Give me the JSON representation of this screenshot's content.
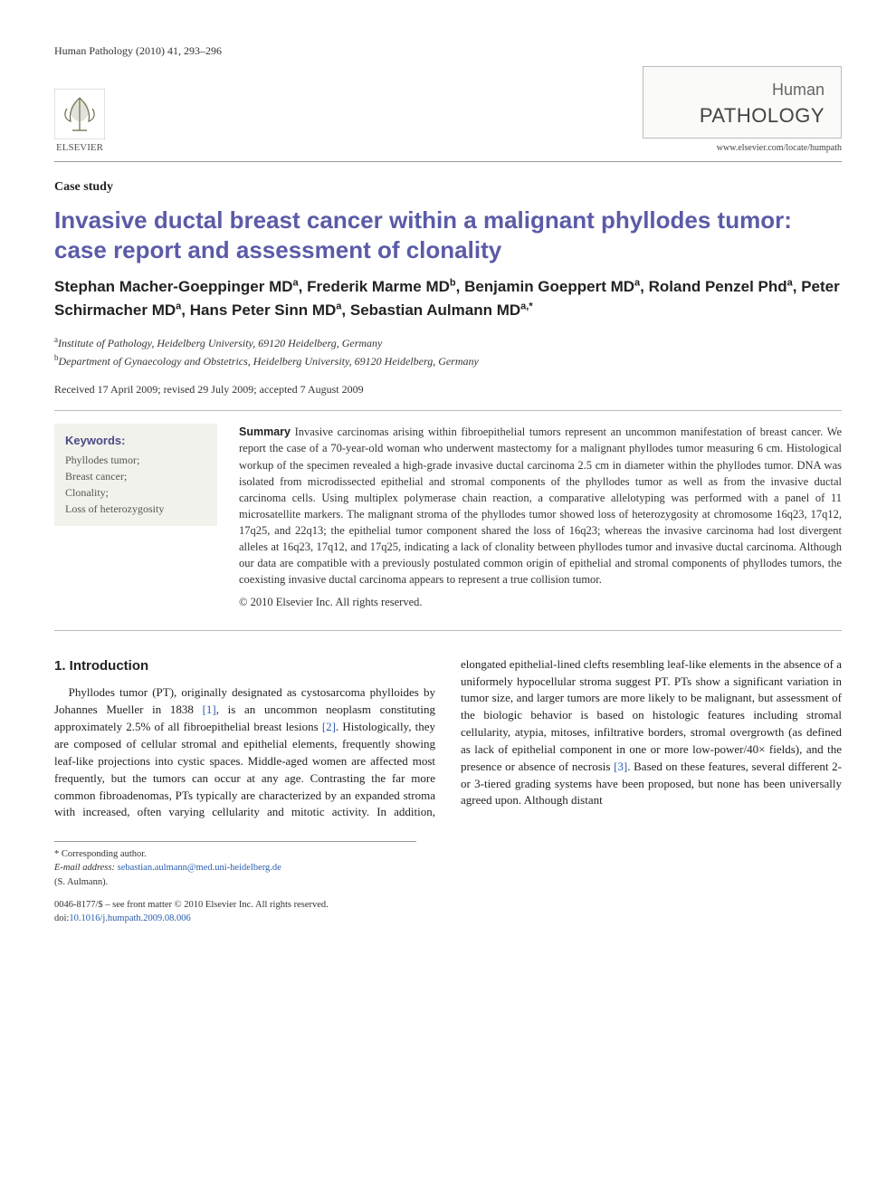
{
  "header": {
    "citation": "Human Pathology (2010) 41, 293–296",
    "publisher_name": "ELSEVIER",
    "journal_name_1": "Human",
    "journal_name_2": "PATHOLOGY",
    "journal_url": "www.elsevier.com/locate/humpath"
  },
  "article_type": "Case study",
  "title": "Invasive ductal breast cancer within a malignant phyllodes tumor: case report and assessment of clonality",
  "authors_html": "Stephan Macher-Goeppinger MD<sup>a</sup>, Frederik Marme MD<sup>b</sup>, Benjamin Goeppert MD<sup>a</sup>, Roland Penzel Phd<sup>a</sup>, Peter Schirmacher MD<sup>a</sup>, Hans Peter Sinn MD<sup>a</sup>, Sebastian Aulmann MD<sup>a,*</sup>",
  "affiliations": [
    {
      "sup": "a",
      "text": "Institute of Pathology, Heidelberg University, 69120 Heidelberg, Germany"
    },
    {
      "sup": "b",
      "text": "Department of Gynaecology and Obstetrics, Heidelberg University, 69120 Heidelberg, Germany"
    }
  ],
  "dates": "Received 17 April 2009; revised 29 July 2009; accepted 7 August 2009",
  "keywords": {
    "heading": "Keywords:",
    "items": [
      "Phyllodes tumor;",
      "Breast cancer;",
      "Clonality;",
      "Loss of heterozygosity"
    ]
  },
  "summary": {
    "heading": "Summary",
    "text": "Invasive carcinomas arising within fibroepithelial tumors represent an uncommon manifestation of breast cancer. We report the case of a 70-year-old woman who underwent mastectomy for a malignant phyllodes tumor measuring 6 cm. Histological workup of the specimen revealed a high-grade invasive ductal carcinoma 2.5 cm in diameter within the phyllodes tumor. DNA was isolated from microdissected epithelial and stromal components of the phyllodes tumor as well as from the invasive ductal carcinoma cells. Using multiplex polymerase chain reaction, a comparative allelotyping was performed with a panel of 11 microsatellite markers. The malignant stroma of the phyllodes tumor showed loss of heterozygosity at chromosome 16q23, 17q12, 17q25, and 22q13; the epithelial tumor component shared the loss of 16q23; whereas the invasive carcinoma had lost divergent alleles at 16q23, 17q12, and 17q25, indicating a lack of clonality between phyllodes tumor and invasive ductal carcinoma. Although our data are compatible with a previously postulated common origin of epithelial and stromal components of phyllodes tumors, the coexisting invasive ductal carcinoma appears to represent a true collision tumor.",
    "copyright": "© 2010 Elsevier Inc. All rights reserved."
  },
  "section1": {
    "heading": "1. Introduction",
    "para1_pre": "Phyllodes tumor (PT), originally designated as cystosarcoma phylloides by Johannes Mueller in 1838 ",
    "ref1": "[1]",
    "para1_mid": ", is an uncommon neoplasm constituting approximately 2.5% of all fibroepithelial breast lesions ",
    "ref2": "[2]",
    "para1_post": ". Histologically, they are composed of cellular stromal and epithelial elements, frequently showing leaf-like projections into cystic spaces. Middle-aged women are affected most frequently, but the tumors can occur at any age. Contrasting the far more",
    "para2_pre": "common fibroadenomas, PTs typically are characterized by an expanded stroma with increased, often varying cellularity and mitotic activity. In addition, elongated epithelial-lined clefts resembling leaf-like elements in the absence of a uniformely hypocellular stroma suggest PT. PTs show a significant variation in tumor size, and larger tumors are more likely to be malignant, but assessment of the biologic behavior is based on histologic features including stromal cellularity, atypia, mitoses, infiltrative borders, stromal overgrowth (as defined as lack of epithelial component in one or more low-power/40× fields), and the presence or absence of necrosis ",
    "ref3": "[3]",
    "para2_post": ". Based on these features, several different 2- or 3-tiered grading systems have been proposed, but none has been universally agreed upon. Although distant"
  },
  "footnote": {
    "corresponding": "* Corresponding author.",
    "email_label": "E-mail address:",
    "email": "sebastian.aulmann@med.uni-heidelberg.de",
    "email_name": "(S. Aulmann)."
  },
  "footer": {
    "rights": "0046-8177/$ – see front matter © 2010 Elsevier Inc. All rights reserved.",
    "doi_label": "doi:",
    "doi": "10.1016/j.humpath.2009.08.006"
  }
}
